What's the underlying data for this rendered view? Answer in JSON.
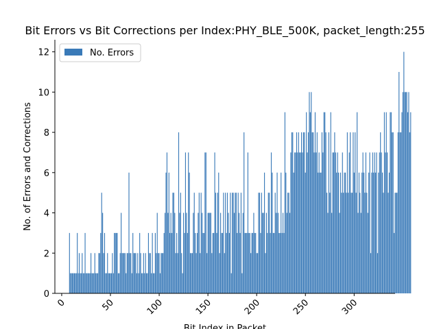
{
  "chart_data": {
    "type": "bar",
    "title": "Bit Errors vs Bit Corrections per Index:PHY_BLE_500K, packet_length:255",
    "xlabel": "Bit Index in Packet",
    "ylabel": "No. of Errors and Corrections",
    "xlim": [
      -7,
      342
    ],
    "ylim": [
      0,
      12.6
    ],
    "xticks": [
      0,
      50,
      100,
      150,
      200,
      250,
      300
    ],
    "yticks": [
      0,
      2,
      4,
      6,
      8,
      10,
      12
    ],
    "xtick_rotation": 45,
    "legend": {
      "position": "top-left",
      "entries": [
        "No. Errors"
      ]
    },
    "grid": false,
    "bar_color": "#3a7ab8",
    "series": [
      {
        "name": "No. Errors",
        "x_start": 8,
        "values": [
          3,
          1,
          1,
          1,
          1,
          1,
          1,
          1,
          3,
          1,
          2,
          1,
          1,
          2,
          1,
          1,
          3,
          1,
          1,
          1,
          1,
          1,
          2,
          1,
          1,
          1,
          2,
          1,
          1,
          1,
          2,
          2,
          3,
          5,
          4,
          2,
          3,
          1,
          1,
          2,
          1,
          1,
          1,
          1,
          2,
          1,
          3,
          3,
          3,
          3,
          1,
          1,
          2,
          4,
          2,
          2,
          2,
          2,
          1,
          2,
          2,
          6,
          2,
          2,
          1,
          3,
          2,
          2,
          2,
          1,
          2,
          1,
          3,
          2,
          1,
          1,
          2,
          1,
          2,
          1,
          1,
          3,
          2,
          2,
          1,
          3,
          1,
          1,
          3,
          2,
          4,
          2,
          2,
          1,
          2,
          2,
          2,
          3,
          4,
          6,
          7,
          4,
          6,
          3,
          4,
          3,
          5,
          5,
          4,
          2,
          3,
          2,
          8,
          4,
          5,
          2,
          1,
          4,
          3,
          7,
          4,
          3,
          7,
          6,
          2,
          2,
          2,
          4,
          5,
          3,
          2,
          3,
          4,
          5,
          2,
          5,
          4,
          3,
          3,
          7,
          7,
          2,
          4,
          4,
          4,
          4,
          2,
          3,
          3,
          7,
          5,
          3,
          5,
          6,
          2,
          4,
          3,
          3,
          5,
          2,
          5,
          3,
          5,
          4,
          3,
          5,
          1,
          5,
          5,
          4,
          5,
          5,
          3,
          5,
          4,
          3,
          5,
          1,
          4,
          8,
          3,
          3,
          3,
          7,
          3,
          3,
          2,
          3,
          3,
          4,
          3,
          3,
          2,
          2,
          5,
          5,
          3,
          5,
          4,
          4,
          6,
          2,
          4,
          3,
          5,
          5,
          3,
          7,
          6,
          3,
          3,
          5,
          4,
          6,
          4,
          3,
          3,
          6,
          3,
          4,
          3,
          9,
          6,
          4,
          5,
          5,
          4,
          7,
          8,
          8,
          6,
          7,
          7,
          8,
          7,
          8,
          7,
          7,
          8,
          7,
          8,
          8,
          6,
          9,
          7,
          8,
          10,
          9,
          10,
          8,
          8,
          7,
          9,
          7,
          8,
          6,
          7,
          6,
          6,
          8,
          7,
          9,
          9,
          8,
          5,
          4,
          8,
          5,
          9,
          4,
          7,
          7,
          8,
          7,
          6,
          7,
          6,
          4,
          6,
          5,
          7,
          5,
          6,
          6,
          5,
          8,
          5,
          7,
          8,
          5,
          5,
          8,
          6,
          8,
          5,
          9,
          4,
          6,
          5,
          4,
          6,
          7,
          6,
          5,
          7,
          5,
          4,
          6,
          7,
          2,
          6,
          7,
          6,
          7,
          6,
          7,
          2,
          6,
          7,
          8,
          7,
          6,
          5,
          9,
          7,
          9,
          7,
          5,
          6,
          9,
          9,
          8,
          8,
          3,
          5,
          5,
          5,
          8,
          11,
          8,
          8,
          9,
          10,
          12,
          10,
          10,
          10,
          9,
          10,
          8,
          9
        ]
      }
    ]
  }
}
